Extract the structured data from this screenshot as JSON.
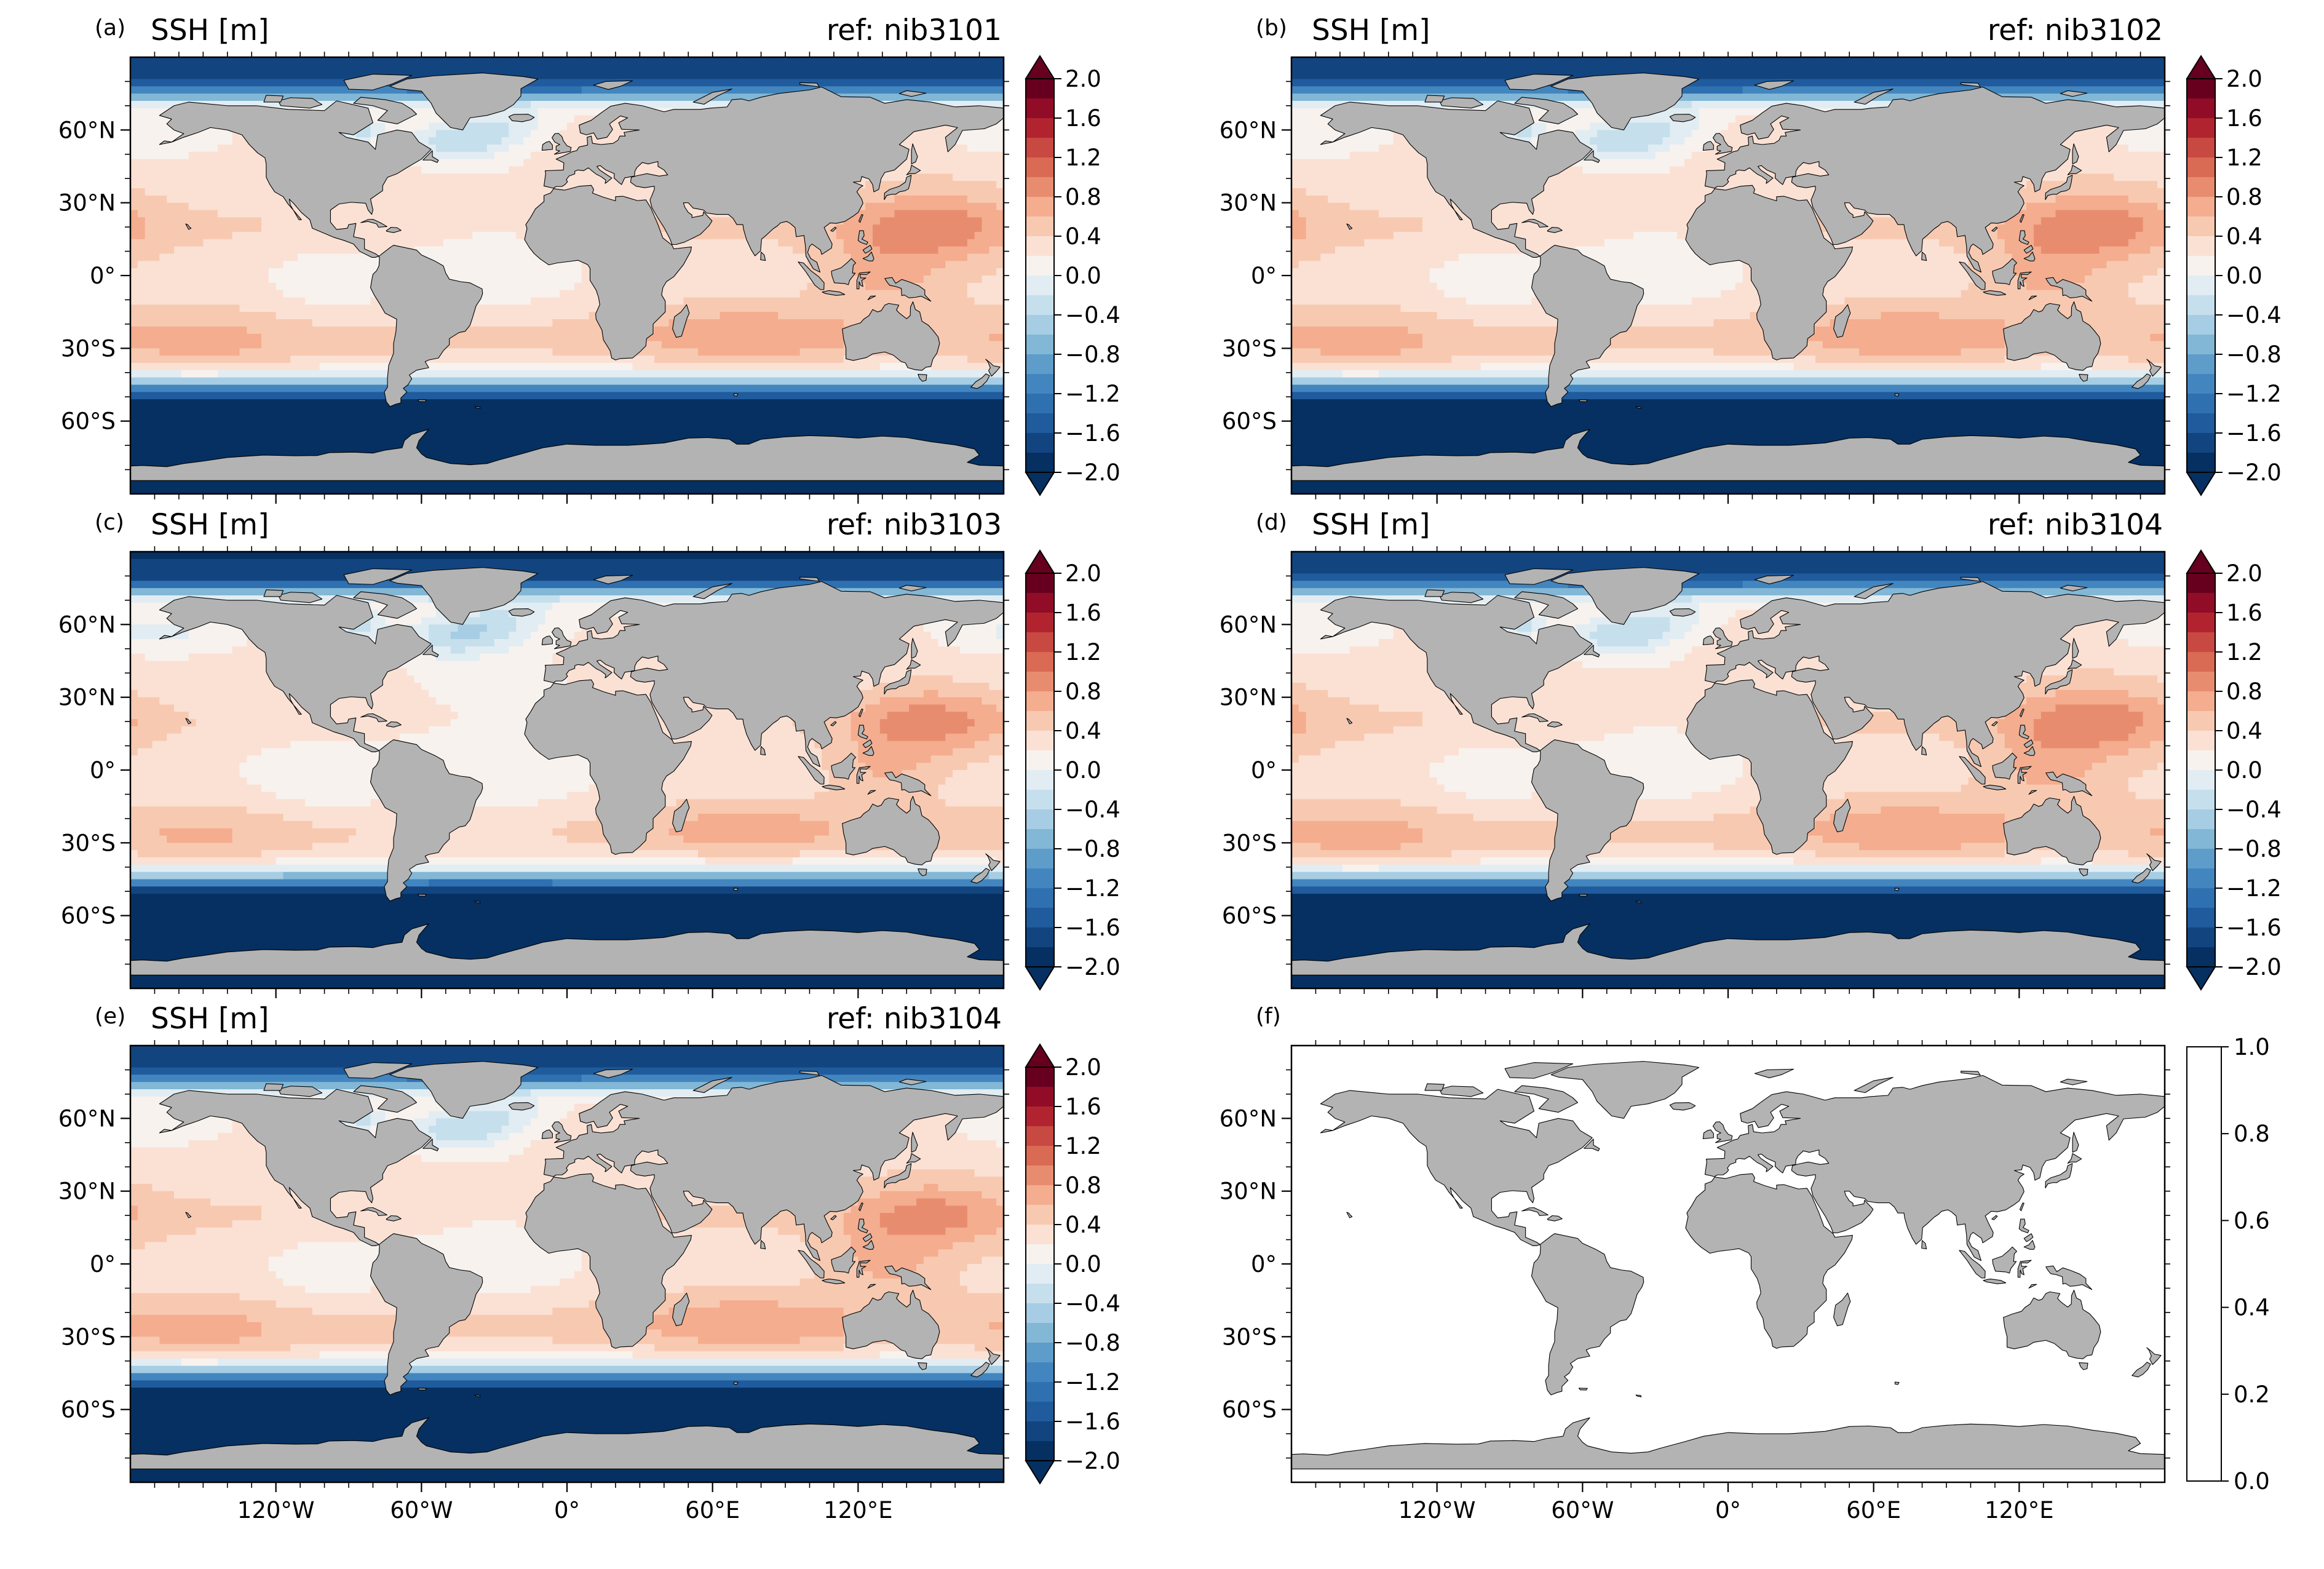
{
  "figure": {
    "panels": [
      {
        "letter": "(a)",
        "title_left": "SSH [m]",
        "title_right": "ref: nib3101",
        "has_field": true
      },
      {
        "letter": "(b)",
        "title_left": "SSH [m]",
        "title_right": "ref: nib3102",
        "has_field": true
      },
      {
        "letter": "(c)",
        "title_left": "SSH [m]",
        "title_right": "ref: nib3103",
        "has_field": true
      },
      {
        "letter": "(d)",
        "title_left": "SSH [m]",
        "title_right": "ref: nib3104",
        "has_field": true
      },
      {
        "letter": "(e)",
        "title_left": "SSH [m]",
        "title_right": "ref: nib3104",
        "has_field": true
      },
      {
        "letter": "(f)",
        "title_left": "",
        "title_right": "",
        "has_field": false
      }
    ],
    "lat_ticks": [
      "60°N",
      "30°N",
      "0°",
      "30°S",
      "60°S"
    ],
    "lon_ticks": [
      "120°W",
      "60°W",
      "0°",
      "60°E",
      "120°E"
    ],
    "colorbar_ticks": [
      "2.0",
      "1.6",
      "1.2",
      "0.8",
      "0.4",
      "0.0",
      "−0.4",
      "−0.8",
      "−1.2",
      "−1.6",
      "−2.0"
    ],
    "empty_colorbar_ticks": [
      "1.0",
      "0.8",
      "0.6",
      "0.4",
      "0.2",
      "0.0"
    ]
  },
  "colors": {
    "land": "#b3b3b3",
    "coast": "#000000",
    "cmap": [
      "#053061",
      "#12457f",
      "#1f5b9d",
      "#2f70b1",
      "#4386bf",
      "#5e9cca",
      "#82b7d6",
      "#a6cde3",
      "#c6dfec",
      "#e1edf3",
      "#f7f2ee",
      "#fbe1d4",
      "#f8c9b1",
      "#f4ad8e",
      "#e88c6f",
      "#d96a53",
      "#c84842",
      "#b1242f",
      "#900c27",
      "#67001f"
    ]
  },
  "chart_data": [
    {
      "type": "heatmap",
      "panel": "(a)",
      "title": "SSH [m]",
      "subtitle": "ref: nib3101",
      "x_ticks": [
        -120,
        -60,
        0,
        60,
        120
      ],
      "y_ticks": [
        60,
        30,
        0,
        -30,
        -60
      ],
      "xlim": [
        -180,
        180
      ],
      "ylim": [
        -90,
        90
      ],
      "color_range": [
        -2.0,
        2.0
      ],
      "color_step": 0.2,
      "features": {
        "southern_ocean_min": -2.0,
        "arctic": -1.8,
        "west_pacific_warm_pool": 0.9,
        "north_atlantic": -0.6,
        "subtropical_gyres": 0.6
      }
    },
    {
      "type": "heatmap",
      "panel": "(b)",
      "title": "SSH [m]",
      "subtitle": "ref: nib3102",
      "xlim": [
        -180,
        180
      ],
      "ylim": [
        -90,
        90
      ],
      "color_range": [
        -2.0,
        2.0
      ],
      "features": {
        "southern_ocean_min": -2.0,
        "arctic": -1.8,
        "west_pacific_warm_pool": 0.9,
        "north_atlantic": -0.6,
        "subtropical_gyres": 0.6
      }
    },
    {
      "type": "heatmap",
      "panel": "(c)",
      "title": "SSH [m]",
      "subtitle": "ref: nib3103",
      "xlim": [
        -180,
        180
      ],
      "ylim": [
        -90,
        90
      ],
      "color_range": [
        -2.0,
        2.0
      ],
      "features": {
        "southern_ocean_min": -2.0,
        "arctic": -1.8,
        "west_pacific_warm_pool": 0.8,
        "north_atlantic": -0.5,
        "subtropical_gyres": 0.55
      }
    },
    {
      "type": "heatmap",
      "panel": "(d)",
      "title": "SSH [m]",
      "subtitle": "ref: nib3104",
      "xlim": [
        -180,
        180
      ],
      "ylim": [
        -90,
        90
      ],
      "color_range": [
        -2.0,
        2.0
      ],
      "features": {
        "southern_ocean_min": -2.0,
        "arctic": -1.8,
        "west_pacific_warm_pool": 0.9,
        "north_atlantic": -0.6,
        "subtropical_gyres": 0.6
      }
    },
    {
      "type": "heatmap",
      "panel": "(e)",
      "title": "SSH [m]",
      "subtitle": "ref: nib3104",
      "xlim": [
        -180,
        180
      ],
      "ylim": [
        -90,
        90
      ],
      "color_range": [
        -2.0,
        2.0
      ],
      "features": {
        "southern_ocean_min": -2.0,
        "arctic": -1.8,
        "west_pacific_warm_pool": 0.8,
        "north_atlantic": -0.5,
        "subtropical_gyres": 0.5
      }
    },
    {
      "type": "heatmap",
      "panel": "(f)",
      "title": "",
      "subtitle": "",
      "xlim": [
        -180,
        180
      ],
      "ylim": [
        -90,
        90
      ],
      "color_range": [
        0.0,
        1.0
      ],
      "empty": true
    }
  ]
}
